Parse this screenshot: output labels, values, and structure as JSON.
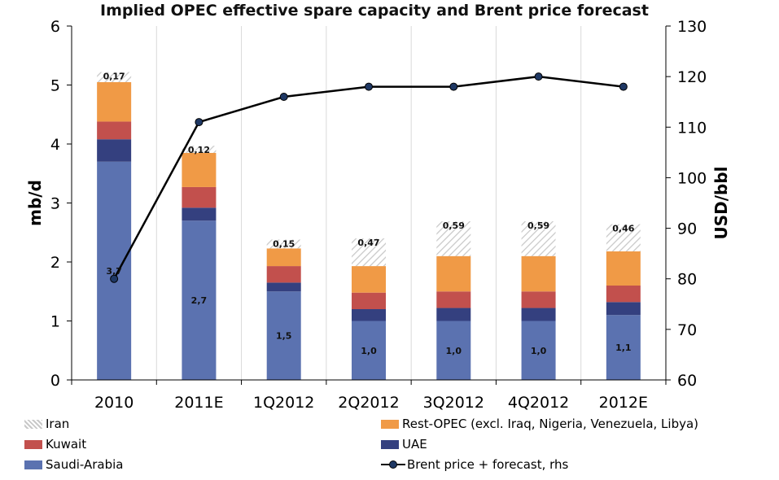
{
  "chart_data": {
    "type": "bar",
    "title": "Implied OPEC effective spare capacity and Brent price forecast",
    "categories": [
      "2010",
      "2011E",
      "1Q2012",
      "2Q2012",
      "3Q2012",
      "4Q2012",
      "2012E"
    ],
    "ylabel": "mb/d",
    "y2label": "USD/bbl",
    "ylim": [
      0,
      6
    ],
    "y2lim": [
      60,
      130
    ],
    "yticks": [
      "0",
      "1",
      "2",
      "3",
      "4",
      "5",
      "6"
    ],
    "y2ticks": [
      "60",
      "70",
      "80",
      "90",
      "100",
      "110",
      "120",
      "130"
    ],
    "stacked": true,
    "series": [
      {
        "name": "Saudi-Arabia",
        "color": "#5b72b0",
        "values": [
          3.7,
          2.7,
          1.5,
          1.0,
          1.0,
          1.0,
          1.1
        ],
        "labels": [
          "3,7",
          "2,7",
          "1,5",
          "1,0",
          "1,0",
          "1,0",
          "1,1"
        ]
      },
      {
        "name": "UAE",
        "color": "#34407f",
        "values": [
          0.38,
          0.22,
          0.15,
          0.2,
          0.22,
          0.22,
          0.22
        ]
      },
      {
        "name": "Kuwait",
        "color": "#c2504d",
        "values": [
          0.3,
          0.35,
          0.28,
          0.28,
          0.28,
          0.28,
          0.28
        ]
      },
      {
        "name": "Rest-OPEC (excl. Iraq, Nigeria, Venezuela, Libya)",
        "color": "#f09a46",
        "values": [
          0.67,
          0.58,
          0.3,
          0.45,
          0.6,
          0.6,
          0.58
        ]
      },
      {
        "name": "Iran",
        "color": "#d9d9d9",
        "pattern": "hatch",
        "values": [
          0.17,
          0.12,
          0.15,
          0.47,
          0.59,
          0.59,
          0.46
        ],
        "labels": [
          "0,17",
          "0,12",
          "0,15",
          "0,47",
          "0,59",
          "0,59",
          "0,46"
        ]
      }
    ],
    "line_series": {
      "name": "Brent price + forecast, rhs",
      "axis": "right",
      "color": "#000000",
      "marker_color": "#1f3864",
      "values": [
        80,
        111,
        116,
        118,
        118,
        120,
        118
      ]
    },
    "legend": [
      {
        "name": "Iran",
        "kind": "hatch"
      },
      {
        "name": "Rest-OPEC (excl. Iraq, Nigeria, Venezuela, Libya)",
        "kind": "box",
        "color": "#f09a46"
      },
      {
        "name": "Kuwait",
        "kind": "box",
        "color": "#c2504d"
      },
      {
        "name": "UAE",
        "kind": "box",
        "color": "#34407f"
      },
      {
        "name": "Saudi-Arabia",
        "kind": "box",
        "color": "#5b72b0"
      },
      {
        "name": "Brent price + forecast, rhs",
        "kind": "line",
        "color": "#000000"
      }
    ],
    "legend_position": "bottom"
  }
}
